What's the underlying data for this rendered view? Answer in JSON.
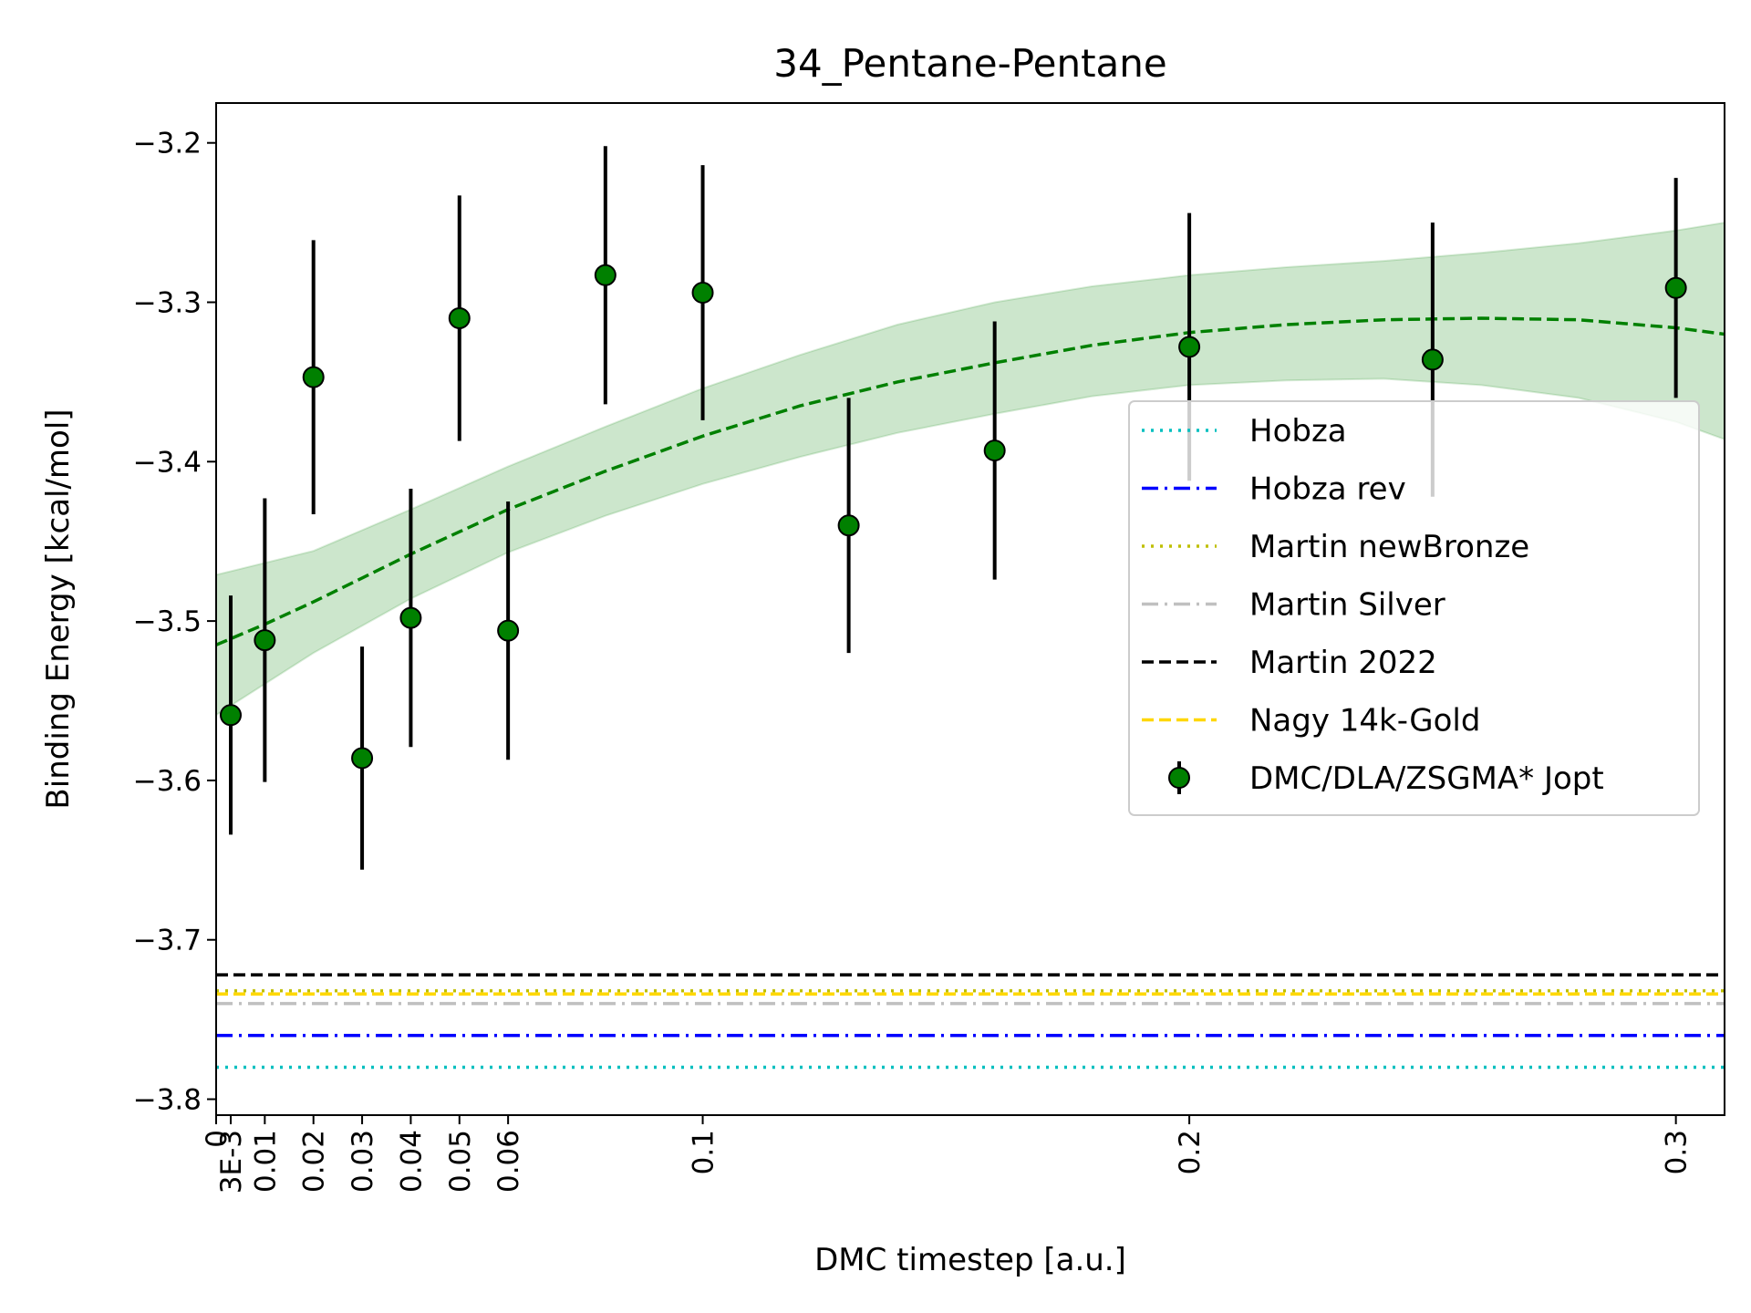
{
  "chart_data": {
    "type": "scatter",
    "title": "34_Pentane-Pentane",
    "xlabel": "DMC timestep [a.u.]",
    "ylabel": "Binding Energy [kcal/mol]",
    "xlim": [
      0,
      0.31
    ],
    "ylim": [
      -3.81,
      -3.175
    ],
    "x_ticks": [
      {
        "value": 0,
        "label": "0"
      },
      {
        "value": 0.003,
        "label": "3E-3"
      },
      {
        "value": 0.01,
        "label": "0.01"
      },
      {
        "value": 0.02,
        "label": "0.02"
      },
      {
        "value": 0.03,
        "label": "0.03"
      },
      {
        "value": 0.04,
        "label": "0.04"
      },
      {
        "value": 0.05,
        "label": "0.05"
      },
      {
        "value": 0.06,
        "label": "0.06"
      },
      {
        "value": 0.1,
        "label": "0.1"
      },
      {
        "value": 0.2,
        "label": "0.2"
      },
      {
        "value": 0.3,
        "label": "0.3"
      }
    ],
    "y_ticks": [
      {
        "value": -3.2,
        "label": "−3.2"
      },
      {
        "value": -3.3,
        "label": "−3.3"
      },
      {
        "value": -3.4,
        "label": "−3.4"
      },
      {
        "value": -3.5,
        "label": "−3.5"
      },
      {
        "value": -3.6,
        "label": "−3.6"
      },
      {
        "value": -3.7,
        "label": "−3.7"
      },
      {
        "value": -3.8,
        "label": "−3.8"
      }
    ],
    "points": {
      "name": "DMC/DLA/ZSGMA* Jopt",
      "color": "#008000",
      "data": [
        {
          "x": 0.003,
          "y": -3.559,
          "err": 0.075
        },
        {
          "x": 0.01,
          "y": -3.512,
          "err": 0.089
        },
        {
          "x": 0.02,
          "y": -3.347,
          "err": 0.086
        },
        {
          "x": 0.03,
          "y": -3.586,
          "err": 0.07
        },
        {
          "x": 0.04,
          "y": -3.498,
          "err": 0.081
        },
        {
          "x": 0.05,
          "y": -3.31,
          "err": 0.077
        },
        {
          "x": 0.06,
          "y": -3.506,
          "err": 0.081
        },
        {
          "x": 0.08,
          "y": -3.283,
          "err": 0.081
        },
        {
          "x": 0.1,
          "y": -3.294,
          "err": 0.08
        },
        {
          "x": 0.13,
          "y": -3.44,
          "err": 0.08
        },
        {
          "x": 0.16,
          "y": -3.393,
          "err": 0.081
        },
        {
          "x": 0.2,
          "y": -3.328,
          "err": 0.084
        },
        {
          "x": 0.25,
          "y": -3.336,
          "err": 0.086
        },
        {
          "x": 0.3,
          "y": -3.291,
          "err": 0.069
        }
      ]
    },
    "fit": {
      "color": "#008000",
      "curve": [
        {
          "x": 0,
          "y": -3.515
        },
        {
          "x": 0.01,
          "y": -3.502
        },
        {
          "x": 0.02,
          "y": -3.488
        },
        {
          "x": 0.03,
          "y": -3.473
        },
        {
          "x": 0.04,
          "y": -3.458
        },
        {
          "x": 0.05,
          "y": -3.444
        },
        {
          "x": 0.06,
          "y": -3.43
        },
        {
          "x": 0.08,
          "y": -3.406
        },
        {
          "x": 0.1,
          "y": -3.384
        },
        {
          "x": 0.12,
          "y": -3.365
        },
        {
          "x": 0.14,
          "y": -3.35
        },
        {
          "x": 0.16,
          "y": -3.338
        },
        {
          "x": 0.18,
          "y": -3.327
        },
        {
          "x": 0.2,
          "y": -3.319
        },
        {
          "x": 0.22,
          "y": -3.314
        },
        {
          "x": 0.24,
          "y": -3.311
        },
        {
          "x": 0.26,
          "y": -3.31
        },
        {
          "x": 0.28,
          "y": -3.311
        },
        {
          "x": 0.3,
          "y": -3.316
        },
        {
          "x": 0.31,
          "y": -3.32
        }
      ],
      "band_upper": [
        {
          "x": 0,
          "y": -3.471
        },
        {
          "x": 0.02,
          "y": -3.456
        },
        {
          "x": 0.04,
          "y": -3.43
        },
        {
          "x": 0.06,
          "y": -3.403
        },
        {
          "x": 0.08,
          "y": -3.378
        },
        {
          "x": 0.1,
          "y": -3.354
        },
        {
          "x": 0.12,
          "y": -3.333
        },
        {
          "x": 0.14,
          "y": -3.314
        },
        {
          "x": 0.16,
          "y": -3.3
        },
        {
          "x": 0.18,
          "y": -3.29
        },
        {
          "x": 0.2,
          "y": -3.283
        },
        {
          "x": 0.22,
          "y": -3.278
        },
        {
          "x": 0.24,
          "y": -3.274
        },
        {
          "x": 0.26,
          "y": -3.269
        },
        {
          "x": 0.28,
          "y": -3.263
        },
        {
          "x": 0.3,
          "y": -3.255
        },
        {
          "x": 0.31,
          "y": -3.25
        }
      ],
      "band_lower": [
        {
          "x": 0,
          "y": -3.559
        },
        {
          "x": 0.02,
          "y": -3.52
        },
        {
          "x": 0.04,
          "y": -3.486
        },
        {
          "x": 0.06,
          "y": -3.457
        },
        {
          "x": 0.08,
          "y": -3.434
        },
        {
          "x": 0.1,
          "y": -3.414
        },
        {
          "x": 0.12,
          "y": -3.397
        },
        {
          "x": 0.14,
          "y": -3.382
        },
        {
          "x": 0.16,
          "y": -3.37
        },
        {
          "x": 0.18,
          "y": -3.359
        },
        {
          "x": 0.2,
          "y": -3.352
        },
        {
          "x": 0.22,
          "y": -3.349
        },
        {
          "x": 0.24,
          "y": -3.348
        },
        {
          "x": 0.26,
          "y": -3.352
        },
        {
          "x": 0.28,
          "y": -3.36
        },
        {
          "x": 0.3,
          "y": -3.375
        },
        {
          "x": 0.31,
          "y": -3.386
        }
      ]
    },
    "reference_lines": [
      {
        "name": "Hobza",
        "y": -3.78,
        "color": "#00bfbf",
        "style": "dotted"
      },
      {
        "name": "Hobza rev",
        "y": -3.76,
        "color": "#0000ff",
        "style": "dashdot"
      },
      {
        "name": "Martin newBronze",
        "y": -3.732,
        "color": "#bfbf00",
        "style": "dotted"
      },
      {
        "name": "Martin Silver",
        "y": -3.74,
        "color": "#c0c0c0",
        "style": "dashdot"
      },
      {
        "name": "Martin 2022",
        "y": -3.722,
        "color": "#000000",
        "style": "dashed"
      },
      {
        "name": "Nagy 14k-Gold",
        "y": -3.734,
        "color": "#ffd700",
        "style": "dashed"
      }
    ],
    "legend": {
      "position": "center-right",
      "entries": [
        "Hobza",
        "Hobza rev",
        "Martin newBronze",
        "Martin Silver",
        "Martin 2022",
        "Nagy 14k-Gold",
        "DMC/DLA/ZSGMA* Jopt"
      ]
    },
    "grid": false
  }
}
